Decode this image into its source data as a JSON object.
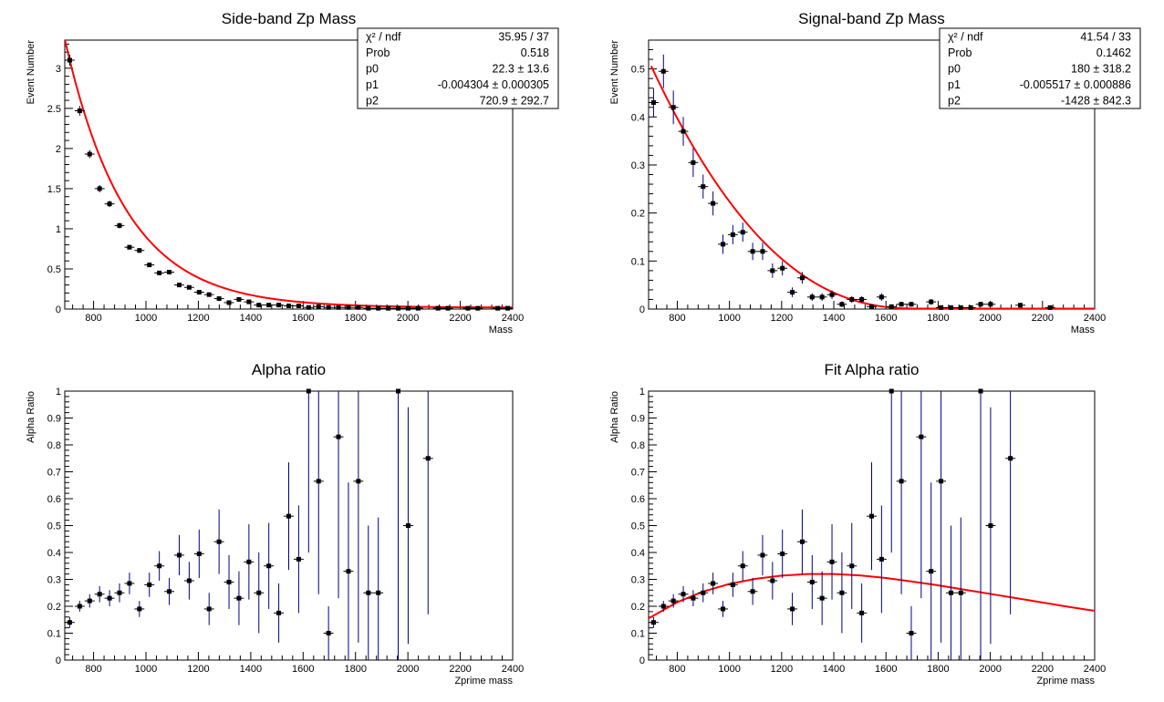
{
  "chart_data": [
    {
      "type": "scatter",
      "title": "Side-band Zp Mass",
      "xlabel": "Mass",
      "ylabel": "Event Number",
      "xlim": [
        690,
        2400
      ],
      "ylim": [
        0,
        3.35
      ],
      "xticks": [
        800,
        1000,
        1200,
        1400,
        1600,
        1800,
        2000,
        2200,
        2400
      ],
      "yticks": [
        0,
        0.5,
        1,
        1.5,
        2,
        2.5,
        3
      ],
      "ytick_labels": [
        "0",
        "0.5",
        "1",
        "1.5",
        "2",
        "2.5",
        "3"
      ],
      "bin_width": 38,
      "marker_color": "#000000",
      "error_color": "#000000",
      "fit": {
        "model": "p0*exp(p1*x)+p2",
        "p0": 22.3,
        "p1": -0.004304,
        "p2": 720.9,
        "color": "#ff0000",
        "xrange": [
          690,
          2400
        ]
      },
      "stats": [
        {
          "label": "χ² / ndf",
          "value": "35.95 / 37"
        },
        {
          "label": "Prob",
          "value": "0.518"
        },
        {
          "label": "p0",
          "value": "22.3 ± 13.6"
        },
        {
          "label": "p1",
          "value": "-0.004304 ± 0.000305"
        },
        {
          "label": "p2",
          "value": "720.9 ± 292.7"
        }
      ],
      "points": [
        {
          "x": 709,
          "y": 3.1,
          "err": 0.07
        },
        {
          "x": 747,
          "y": 2.47,
          "err": 0.06
        },
        {
          "x": 785,
          "y": 1.93,
          "err": 0.05
        },
        {
          "x": 823,
          "y": 1.5,
          "err": 0.045
        },
        {
          "x": 861,
          "y": 1.31,
          "err": 0.04
        },
        {
          "x": 899,
          "y": 1.04,
          "err": 0.035
        },
        {
          "x": 937,
          "y": 0.77,
          "err": 0.03
        },
        {
          "x": 975,
          "y": 0.73,
          "err": 0.03
        },
        {
          "x": 1013,
          "y": 0.55,
          "err": 0.025
        },
        {
          "x": 1051,
          "y": 0.45,
          "err": 0.025
        },
        {
          "x": 1089,
          "y": 0.46,
          "err": 0.025
        },
        {
          "x": 1127,
          "y": 0.3,
          "err": 0.02
        },
        {
          "x": 1165,
          "y": 0.27,
          "err": 0.02
        },
        {
          "x": 1203,
          "y": 0.21,
          "err": 0.015
        },
        {
          "x": 1241,
          "y": 0.18,
          "err": 0.015
        },
        {
          "x": 1279,
          "y": 0.13,
          "err": 0.012
        },
        {
          "x": 1317,
          "y": 0.08,
          "err": 0.01
        },
        {
          "x": 1355,
          "y": 0.12,
          "err": 0.012
        },
        {
          "x": 1393,
          "y": 0.09,
          "err": 0.01
        },
        {
          "x": 1431,
          "y": 0.05,
          "err": 0.008
        },
        {
          "x": 1469,
          "y": 0.05,
          "err": 0.008
        },
        {
          "x": 1507,
          "y": 0.05,
          "err": 0.008
        },
        {
          "x": 1545,
          "y": 0.04,
          "err": 0.007
        },
        {
          "x": 1583,
          "y": 0.04,
          "err": 0.007
        },
        {
          "x": 1621,
          "y": 0.02,
          "err": 0.005
        },
        {
          "x": 1659,
          "y": 0.03,
          "err": 0.006
        },
        {
          "x": 1697,
          "y": 0.02,
          "err": 0.005
        },
        {
          "x": 1735,
          "y": 0.02,
          "err": 0.005
        },
        {
          "x": 1773,
          "y": 0.02,
          "err": 0.005
        },
        {
          "x": 1811,
          "y": 0.02,
          "err": 0.005
        },
        {
          "x": 1849,
          "y": 0.01,
          "err": 0.004
        },
        {
          "x": 1887,
          "y": 0.01,
          "err": 0.004
        },
        {
          "x": 1925,
          "y": 0.01,
          "err": 0.004
        },
        {
          "x": 1963,
          "y": 0.01,
          "err": 0.004
        },
        {
          "x": 2001,
          "y": 0.01,
          "err": 0.004
        },
        {
          "x": 2039,
          "y": 0.01,
          "err": 0.004
        },
        {
          "x": 2115,
          "y": 0.01,
          "err": 0.004
        },
        {
          "x": 2153,
          "y": 0.01,
          "err": 0.004
        },
        {
          "x": 2229,
          "y": 0.01,
          "err": 0.004
        },
        {
          "x": 2267,
          "y": 0.01,
          "err": 0.004
        },
        {
          "x": 2343,
          "y": 0.01,
          "err": 0.004
        },
        {
          "x": 2381,
          "y": 0.01,
          "err": 0.004
        }
      ]
    },
    {
      "type": "scatter",
      "title": "Signal-band Zp Mass",
      "xlabel": "Mass",
      "ylabel": "Event Number",
      "xlim": [
        690,
        2400
      ],
      "ylim": [
        0,
        0.56
      ],
      "xticks": [
        800,
        1000,
        1200,
        1400,
        1600,
        1800,
        2000,
        2200,
        2400
      ],
      "yticks": [
        0,
        0.1,
        0.2,
        0.3,
        0.4,
        0.5
      ],
      "ytick_labels": [
        "0",
        "0.1",
        "0.2",
        "0.3",
        "0.4",
        "0.5"
      ],
      "bin_width": 38,
      "marker_color": "#000000",
      "error_color": "#000080",
      "fit": {
        "model": "p0*exp(p1*x)+p2",
        "p0": 180,
        "p1": -0.005517,
        "p2": -1428,
        "color": "#ff0000",
        "xrange": [
          700,
          2400
        ]
      },
      "stats": [
        {
          "label": "χ² / ndf",
          "value": "41.54 / 33"
        },
        {
          "label": "Prob",
          "value": "0.1462"
        },
        {
          "label": "p0",
          "value": "180 ± 318.2"
        },
        {
          "label": "p1",
          "value": "-0.005517 ± 0.000886"
        },
        {
          "label": "p2",
          "value": "-1428 ± 842.3"
        }
      ],
      "points": [
        {
          "x": 709,
          "y": 0.43,
          "err": 0.03
        },
        {
          "x": 747,
          "y": 0.495,
          "err": 0.035
        },
        {
          "x": 785,
          "y": 0.42,
          "err": 0.035
        },
        {
          "x": 823,
          "y": 0.37,
          "err": 0.03
        },
        {
          "x": 861,
          "y": 0.305,
          "err": 0.03
        },
        {
          "x": 899,
          "y": 0.255,
          "err": 0.025
        },
        {
          "x": 937,
          "y": 0.22,
          "err": 0.025
        },
        {
          "x": 975,
          "y": 0.135,
          "err": 0.02
        },
        {
          "x": 1013,
          "y": 0.155,
          "err": 0.02
        },
        {
          "x": 1051,
          "y": 0.16,
          "err": 0.02
        },
        {
          "x": 1089,
          "y": 0.12,
          "err": 0.018
        },
        {
          "x": 1127,
          "y": 0.12,
          "err": 0.018
        },
        {
          "x": 1165,
          "y": 0.08,
          "err": 0.015
        },
        {
          "x": 1203,
          "y": 0.085,
          "err": 0.015
        },
        {
          "x": 1241,
          "y": 0.035,
          "err": 0.01
        },
        {
          "x": 1279,
          "y": 0.065,
          "err": 0.012
        },
        {
          "x": 1317,
          "y": 0.025,
          "err": 0.008
        },
        {
          "x": 1355,
          "y": 0.025,
          "err": 0.008
        },
        {
          "x": 1393,
          "y": 0.03,
          "err": 0.009
        },
        {
          "x": 1431,
          "y": 0.01,
          "err": 0.006
        },
        {
          "x": 1469,
          "y": 0.02,
          "err": 0.007
        },
        {
          "x": 1507,
          "y": 0.02,
          "err": 0.007
        },
        {
          "x": 1545,
          "y": 0.005,
          "err": 0.004
        },
        {
          "x": 1583,
          "y": 0.025,
          "err": 0.008
        },
        {
          "x": 1621,
          "y": 0.005,
          "err": 0.004
        },
        {
          "x": 1659,
          "y": 0.01,
          "err": 0.005
        },
        {
          "x": 1697,
          "y": 0.01,
          "err": 0.005
        },
        {
          "x": 1773,
          "y": 0.015,
          "err": 0.006
        },
        {
          "x": 1811,
          "y": 0.003,
          "err": 0.003
        },
        {
          "x": 1849,
          "y": 0.003,
          "err": 0.003
        },
        {
          "x": 1887,
          "y": 0.003,
          "err": 0.003
        },
        {
          "x": 1925,
          "y": 0.003,
          "err": 0.003
        },
        {
          "x": 1963,
          "y": 0.01,
          "err": 0.005
        },
        {
          "x": 2001,
          "y": 0.01,
          "err": 0.005
        },
        {
          "x": 2115,
          "y": 0.008,
          "err": 0.005
        },
        {
          "x": 2229,
          "y": 0.003,
          "err": 0.003
        }
      ]
    },
    {
      "type": "scatter",
      "title": "Alpha ratio",
      "xlabel": "Zprime mass",
      "ylabel": "Alpha Ratio",
      "xlim": [
        690,
        2400
      ],
      "ylim": [
        0,
        1
      ],
      "xticks": [
        800,
        1000,
        1200,
        1400,
        1600,
        1800,
        2000,
        2200,
        2400
      ],
      "yticks": [
        0,
        0.1,
        0.2,
        0.3,
        0.4,
        0.5,
        0.6,
        0.7,
        0.8,
        0.9,
        1
      ],
      "ytick_labels": [
        "0",
        "0.1",
        "0.2",
        "0.3",
        "0.4",
        "0.5",
        "0.6",
        "0.7",
        "0.8",
        "0.9",
        "1"
      ],
      "bin_width": 38,
      "marker_color": "#000000",
      "error_color": "#000080",
      "fit": null,
      "stats": [],
      "points": [
        {
          "x": 709,
          "y": 0.14,
          "err": 0.02
        },
        {
          "x": 747,
          "y": 0.2,
          "err": 0.02
        },
        {
          "x": 785,
          "y": 0.22,
          "err": 0.025
        },
        {
          "x": 823,
          "y": 0.245,
          "err": 0.03
        },
        {
          "x": 861,
          "y": 0.23,
          "err": 0.03
        },
        {
          "x": 899,
          "y": 0.25,
          "err": 0.035
        },
        {
          "x": 937,
          "y": 0.285,
          "err": 0.04
        },
        {
          "x": 975,
          "y": 0.19,
          "err": 0.03
        },
        {
          "x": 1013,
          "y": 0.28,
          "err": 0.045
        },
        {
          "x": 1051,
          "y": 0.35,
          "err": 0.055
        },
        {
          "x": 1089,
          "y": 0.255,
          "err": 0.05
        },
        {
          "x": 1127,
          "y": 0.39,
          "err": 0.075
        },
        {
          "x": 1165,
          "y": 0.295,
          "err": 0.07
        },
        {
          "x": 1203,
          "y": 0.395,
          "err": 0.09
        },
        {
          "x": 1241,
          "y": 0.19,
          "err": 0.06
        },
        {
          "x": 1279,
          "y": 0.44,
          "err": 0.12
        },
        {
          "x": 1317,
          "y": 0.29,
          "err": 0.1
        },
        {
          "x": 1355,
          "y": 0.23,
          "err": 0.1
        },
        {
          "x": 1393,
          "y": 0.365,
          "err": 0.14
        },
        {
          "x": 1431,
          "y": 0.25,
          "err": 0.15
        },
        {
          "x": 1469,
          "y": 0.35,
          "err": 0.16
        },
        {
          "x": 1507,
          "y": 0.175,
          "err": 0.11
        },
        {
          "x": 1545,
          "y": 0.535,
          "err": 0.2
        },
        {
          "x": 1583,
          "y": 0.375,
          "err": 0.2
        },
        {
          "x": 1621,
          "y": 1.0,
          "err": 0.6
        },
        {
          "x": 1659,
          "y": 0.665,
          "err": 0.42
        },
        {
          "x": 1697,
          "y": 0.1,
          "err": 0.1
        },
        {
          "x": 1735,
          "y": 0.83,
          "err": 0.6
        },
        {
          "x": 1773,
          "y": 0.33,
          "err": 0.33
        },
        {
          "x": 1811,
          "y": 0.665,
          "err": 0.6
        },
        {
          "x": 1849,
          "y": 0.25,
          "err": 0.25
        },
        {
          "x": 1887,
          "y": 0.25,
          "err": 0.28
        },
        {
          "x": 1963,
          "y": 1.0,
          "err": 1.0
        },
        {
          "x": 2001,
          "y": 0.5,
          "err": 0.44
        },
        {
          "x": 2077,
          "y": 0.75,
          "err": 0.58
        }
      ]
    },
    {
      "type": "scatter",
      "title": "Fit Alpha ratio",
      "xlabel": "Zprime mass",
      "ylabel": "Alpha Ratio",
      "xlim": [
        690,
        2400
      ],
      "ylim": [
        0,
        1
      ],
      "xticks": [
        800,
        1000,
        1200,
        1400,
        1600,
        1800,
        2000,
        2200,
        2400
      ],
      "yticks": [
        0,
        0.1,
        0.2,
        0.3,
        0.4,
        0.5,
        0.6,
        0.7,
        0.8,
        0.9,
        1
      ],
      "ytick_labels": [
        "0",
        "0.1",
        "0.2",
        "0.3",
        "0.4",
        "0.5",
        "0.6",
        "0.7",
        "0.8",
        "0.9",
        "1"
      ],
      "bin_width": 38,
      "marker_color": "#000000",
      "error_color": "#000080",
      "fit_curve": {
        "color": "#ff0000",
        "x": [
          690,
          800,
          900,
          1000,
          1100,
          1200,
          1300,
          1400,
          1500,
          1600,
          1700,
          1800,
          1900,
          2000,
          2100,
          2200,
          2300,
          2400
        ],
        "y": [
          0.155,
          0.215,
          0.255,
          0.283,
          0.302,
          0.314,
          0.32,
          0.32,
          0.315,
          0.305,
          0.292,
          0.278,
          0.262,
          0.246,
          0.23,
          0.214,
          0.198,
          0.183
        ]
      },
      "stats": [],
      "points": [
        {
          "x": 709,
          "y": 0.14,
          "err": 0.02
        },
        {
          "x": 747,
          "y": 0.2,
          "err": 0.02
        },
        {
          "x": 785,
          "y": 0.22,
          "err": 0.025
        },
        {
          "x": 823,
          "y": 0.245,
          "err": 0.03
        },
        {
          "x": 861,
          "y": 0.23,
          "err": 0.03
        },
        {
          "x": 899,
          "y": 0.25,
          "err": 0.035
        },
        {
          "x": 937,
          "y": 0.285,
          "err": 0.04
        },
        {
          "x": 975,
          "y": 0.19,
          "err": 0.03
        },
        {
          "x": 1013,
          "y": 0.28,
          "err": 0.045
        },
        {
          "x": 1051,
          "y": 0.35,
          "err": 0.055
        },
        {
          "x": 1089,
          "y": 0.255,
          "err": 0.05
        },
        {
          "x": 1127,
          "y": 0.39,
          "err": 0.075
        },
        {
          "x": 1165,
          "y": 0.295,
          "err": 0.07
        },
        {
          "x": 1203,
          "y": 0.395,
          "err": 0.09
        },
        {
          "x": 1241,
          "y": 0.19,
          "err": 0.06
        },
        {
          "x": 1279,
          "y": 0.44,
          "err": 0.12
        },
        {
          "x": 1317,
          "y": 0.29,
          "err": 0.1
        },
        {
          "x": 1355,
          "y": 0.23,
          "err": 0.1
        },
        {
          "x": 1393,
          "y": 0.365,
          "err": 0.14
        },
        {
          "x": 1431,
          "y": 0.25,
          "err": 0.15
        },
        {
          "x": 1469,
          "y": 0.35,
          "err": 0.16
        },
        {
          "x": 1507,
          "y": 0.175,
          "err": 0.11
        },
        {
          "x": 1545,
          "y": 0.535,
          "err": 0.2
        },
        {
          "x": 1583,
          "y": 0.375,
          "err": 0.2
        },
        {
          "x": 1621,
          "y": 1.0,
          "err": 0.6
        },
        {
          "x": 1659,
          "y": 0.665,
          "err": 0.42
        },
        {
          "x": 1697,
          "y": 0.1,
          "err": 0.1
        },
        {
          "x": 1735,
          "y": 0.83,
          "err": 0.6
        },
        {
          "x": 1773,
          "y": 0.33,
          "err": 0.33
        },
        {
          "x": 1811,
          "y": 0.665,
          "err": 0.6
        },
        {
          "x": 1849,
          "y": 0.25,
          "err": 0.25
        },
        {
          "x": 1887,
          "y": 0.25,
          "err": 0.28
        },
        {
          "x": 1963,
          "y": 1.0,
          "err": 1.0
        },
        {
          "x": 2001,
          "y": 0.5,
          "err": 0.44
        },
        {
          "x": 2077,
          "y": 0.75,
          "err": 0.58
        }
      ]
    }
  ]
}
